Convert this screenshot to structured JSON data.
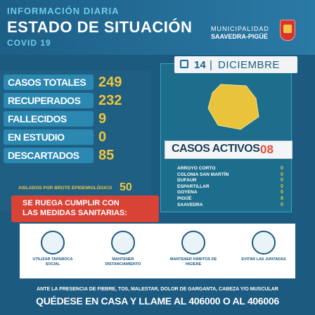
{
  "header": {
    "top": "INFORMACIÓN DIARIA",
    "title": "ESTADO DE SITUACIÓN",
    "subtitle": "COVID 19",
    "municipality_line1": "MUNICIPALIDAD",
    "municipality_line2": "SAAVEDRA-PIGÜÉ"
  },
  "stats": [
    {
      "label": "CASOS TOTALES",
      "value": "249"
    },
    {
      "label": "RECUPERADOS",
      "value": "232"
    },
    {
      "label": "FALLECIDOS",
      "value": "9"
    },
    {
      "label": "EN ESTUDIO",
      "value": "0"
    },
    {
      "label": "DESCARTADOS",
      "value": "85"
    }
  ],
  "isolated": {
    "label": "AISLADOS POR BROTE EPIDEMIOLÓGICO",
    "value": "50"
  },
  "date": {
    "day": "14",
    "separator": "|",
    "month": "DICIEMBRE"
  },
  "active": {
    "label": "CASOS ACTIVOS",
    "value": "08"
  },
  "localities": [
    {
      "name": "ARROYO CORTO",
      "value": "0"
    },
    {
      "name": "COLONIA SAN MARTÍN",
      "value": "0"
    },
    {
      "name": "DUFAUR",
      "value": "0"
    },
    {
      "name": "ESPARTILLAR",
      "value": "0"
    },
    {
      "name": "GOYENA",
      "value": "0"
    },
    {
      "name": "PIGÜÉ",
      "value": "8"
    },
    {
      "name": "SAAVEDRA",
      "value": "0"
    }
  ],
  "measures_banner": {
    "line1": "SE RUEGA CUMPLIR CON",
    "line2": "LAS MEDIDAS SANITARIAS:"
  },
  "measures": [
    {
      "label": "UTILIZAR TAPABOCA SOCIAL",
      "icon": "mask-icon"
    },
    {
      "label": "MANTENER DISTANCIAMIENTO",
      "icon": "distance-icon"
    },
    {
      "label": "MANTENER HÁBITOS DE HIGIENE",
      "icon": "handwash-icon"
    },
    {
      "label": "EVITAR LAS JUNTADAS",
      "icon": "no-gathering-icon"
    }
  ],
  "footer": {
    "line1": "ANTE LA PRESENCIA DE FIEBRE, TOS, MALESTAR, DOLOR DE GARGANTA, CABEZA Y/O MUSCULAR",
    "line2": "QUÉDESE EN CASA Y LLAME AL 406000 O AL 406006"
  },
  "colors": {
    "accent": "#f0c53c",
    "red": "#d84336",
    "blue": "#1c5a80"
  }
}
